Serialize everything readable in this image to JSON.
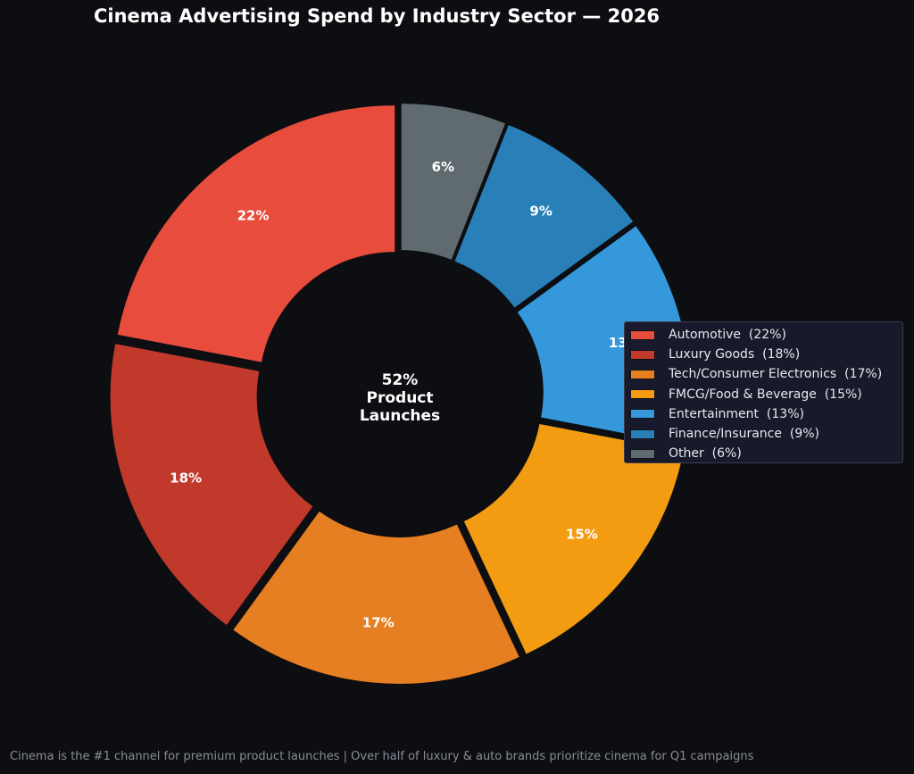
{
  "chart_data": {
    "type": "pie",
    "title": "Cinema Advertising Spend by Industry Sector — 2026",
    "categories": [
      "Automotive",
      "Luxury Goods",
      "Tech/Consumer Electronics",
      "FMCG/Food & Beverage",
      "Entertainment",
      "Finance/Insurance",
      "Other"
    ],
    "values": [
      22,
      18,
      17,
      15,
      13,
      9,
      6
    ],
    "slice_labels": [
      "22%",
      "18%",
      "17%",
      "15%",
      "13%",
      "9%",
      "6%"
    ],
    "legend_labels": [
      "Automotive  (22%)",
      "Luxury Goods  (18%)",
      "Tech/Consumer Electronics  (17%)",
      "FMCG/Food & Beverage  (15%)",
      "Entertainment  (13%)",
      "Finance/Insurance  (9%)",
      "Other  (6%)"
    ],
    "colors": [
      "#e74c3c",
      "#c0392b",
      "#e67e22",
      "#f39c12",
      "#3498db",
      "#2980b9",
      "#5f6b6e"
    ],
    "legend_placement": "center-right",
    "donut": true,
    "center_text": [
      "52%",
      "Product",
      "Launches"
    ]
  },
  "footnote": "Cinema is the #1 channel for premium product launches | Over half of luxury & auto brands prioritize cinema for Q1 campaigns"
}
